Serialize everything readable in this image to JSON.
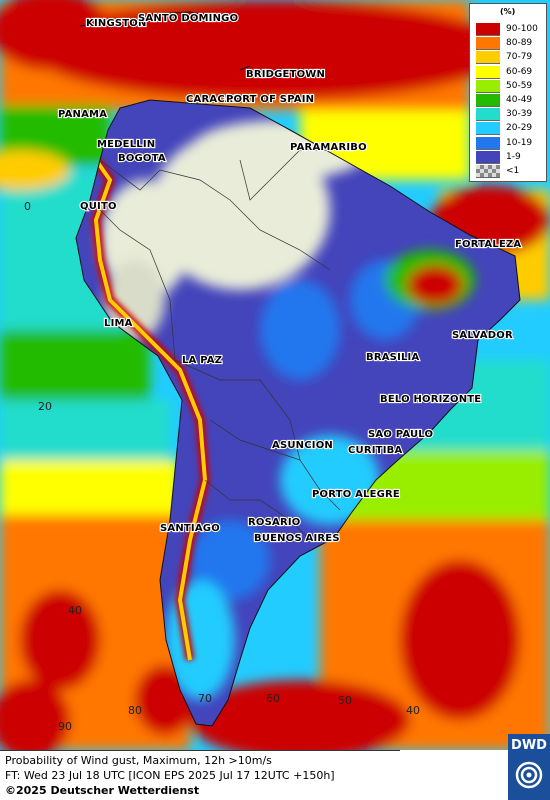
{
  "map": {
    "cities": [
      {
        "name": "KINGSTON"
      },
      {
        "name": "SANTO DOMINGO"
      },
      {
        "name": "BRIDGETOWN"
      },
      {
        "name": "PANAMA"
      },
      {
        "name": "CARACAS"
      },
      {
        "name": "PORT OF SPAIN"
      },
      {
        "name": "MEDELLIN"
      },
      {
        "name": "BOGOTA"
      },
      {
        "name": "PARAMARIBO"
      },
      {
        "name": "QUITO"
      },
      {
        "name": "FORTALEZA"
      },
      {
        "name": "LIMA"
      },
      {
        "name": "SALVADOR"
      },
      {
        "name": "LA PAZ"
      },
      {
        "name": "BRASILIA"
      },
      {
        "name": "BELO HORIZONTE"
      },
      {
        "name": "SAO PAULO"
      },
      {
        "name": "ASUNCION"
      },
      {
        "name": "CURITIBA"
      },
      {
        "name": "PORTO ALEGRE"
      },
      {
        "name": "SANTIAGO"
      },
      {
        "name": "ROSARIO"
      },
      {
        "name": "BUENOS AIRES"
      }
    ],
    "grid_labels": [
      "0",
      "20",
      "40",
      "90",
      "80",
      "70",
      "60",
      "50",
      "40"
    ]
  },
  "legend": {
    "unit": "(%)",
    "entries": [
      {
        "label": "90-100",
        "color": "#cc0000"
      },
      {
        "label": "80-89",
        "color": "#ff7700"
      },
      {
        "label": "70-79",
        "color": "#ffcc00"
      },
      {
        "label": "60-69",
        "color": "#ffff00"
      },
      {
        "label": "50-59",
        "color": "#99ee00"
      },
      {
        "label": "40-49",
        "color": "#22bb00"
      },
      {
        "label": "30-39",
        "color": "#22ddcc"
      },
      {
        "label": "20-29",
        "color": "#22ccff"
      },
      {
        "label": "10-19",
        "color": "#2277ee"
      },
      {
        "label": "1-9",
        "color": "#4444bb"
      },
      {
        "label": "<1",
        "color": "#aaaaaa"
      }
    ]
  },
  "footer": {
    "line1": "Probability of Wind gust, Maximum, 12h >10m/s",
    "line2": "FT: Wed 23 Jul 18 UTC [ICON EPS 2025 Jul 17 12UTC +150h]",
    "line3": "©2025 Deutscher Wetterdienst"
  },
  "logo": {
    "text": "DWD"
  }
}
